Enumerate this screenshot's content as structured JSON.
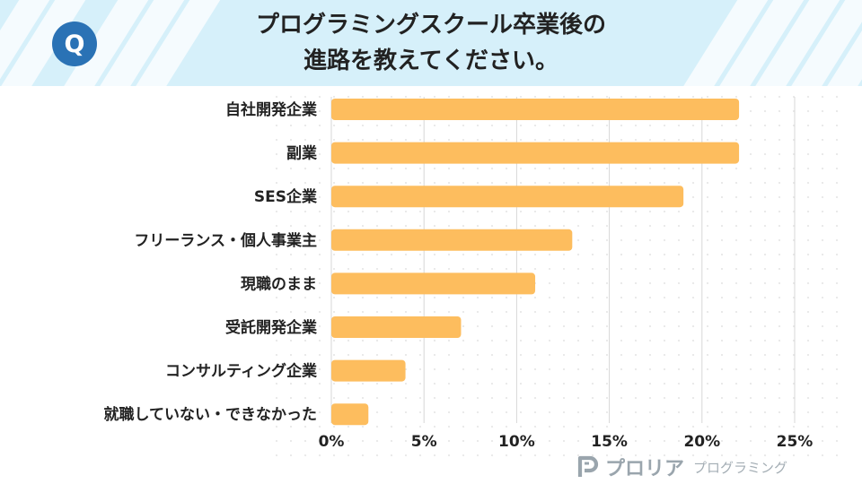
{
  "header": {
    "badge": "Q",
    "title_line1": "プログラミングスクール卒業後の",
    "title_line2": "進路を教えてください。"
  },
  "chart_data": {
    "type": "bar",
    "orientation": "horizontal",
    "categories": [
      "自社開発企業",
      "副業",
      "SES企業",
      "フリーランス・個人事業主",
      "現職のまま",
      "受託開発企業",
      "コンサルティング企業",
      "就職していない・できなかった"
    ],
    "values": [
      22,
      22,
      19,
      13,
      11,
      7,
      4,
      2
    ],
    "unit": "%",
    "xlim": [
      0,
      25
    ],
    "ticks": [
      0,
      5,
      10,
      15,
      20,
      25
    ],
    "tick_labels": [
      "0%",
      "5%",
      "10%",
      "15%",
      "20%",
      "25%"
    ],
    "grid": true,
    "bar_color": "#fdbd5e",
    "grid_color": "#d7d7d7"
  },
  "logo": {
    "name": "プロリア",
    "sub": "プログラミング",
    "color": "#9aa5ad"
  }
}
